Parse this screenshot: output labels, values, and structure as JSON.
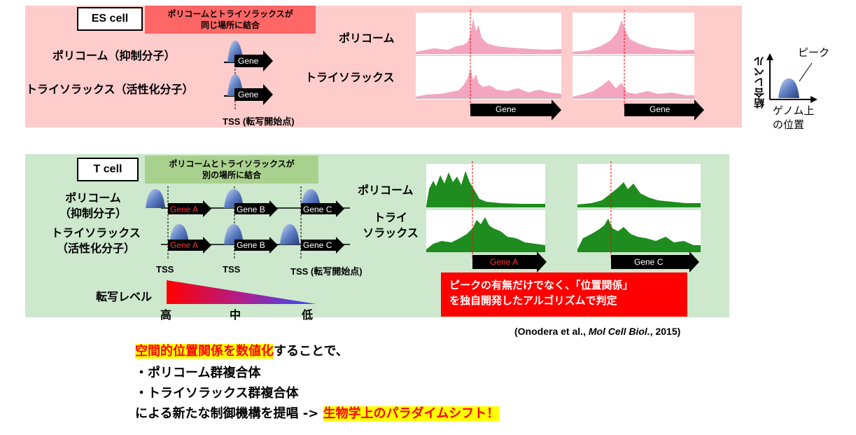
{
  "es": {
    "cell_label": "ES cell",
    "note_line1": "ポリコームとトライソラックスが",
    "note_line2": "同じ場所に結合",
    "polycomb_label": "ポリコーム（抑制分子）",
    "trithorax_label": "トライソラックス（活性化分子）",
    "gene_label": "Gene",
    "tss_label": "TSS (転写開始点)",
    "track_polycomb": "ポリコーム",
    "track_trithorax": "トライソラックス",
    "track_gene1": "Gene",
    "track_gene2": "Gene"
  },
  "legend": {
    "ylabel": "結合レベル",
    "xlabel_line1": "ゲノム上",
    "xlabel_line2": "の位置",
    "peak": "ピーク"
  },
  "t": {
    "cell_label": "T cell",
    "note_line1": "ポリコームとトライソラックスが",
    "note_line2": "別の場所に結合",
    "polycomb_line1": "ポリコーム",
    "polycomb_line2": "（抑制分子）",
    "trithorax_line1": "トライソラックス",
    "trithorax_line2": "（活性化分子）",
    "gene_a": "Gene A",
    "gene_b": "Gene B",
    "gene_c": "Gene C",
    "tss1": "TSS",
    "tss2": "TSS",
    "tss3": "TSS (転写開始点)",
    "level_label": "転写レベル",
    "level_high": "高",
    "level_mid": "中",
    "level_low": "低",
    "track_polycomb": "ポリコーム",
    "track_trithorax_line1": "トライ",
    "track_trithorax_line2": "ソラックス",
    "track_gene_a": "Gene A",
    "track_gene_c": "Gene C",
    "callout_line1": "ピークの有無だけでなく、「位置関係」",
    "callout_line2": "を独自開発したアルゴリズムで判定"
  },
  "citation": {
    "prefix": "(Onodera et al., ",
    "journal": "Mol Cell Biol.",
    "suffix": ", 2015)"
  },
  "bottom": {
    "line1_highlight": "空間的位置関係を数値化",
    "line1_rest": "することで、",
    "line2": "・ポリコーム群複合体",
    "line3": "・トライソラックス群複合体",
    "line4_text": "による新たな制御機構を提唱 -> ",
    "line4_highlight": "生物学上のパラダイムシフト！"
  },
  "colors": {
    "es_bg": "#ffcccc",
    "t_bg": "#cde8cd",
    "es_note": "#ff6666",
    "t_note": "#a9d18e",
    "peak_pink": "#f4a6c0",
    "peak_green": "#1e8c1e",
    "callout_red": "#ff0000",
    "highlight_yellow": "#ffff00"
  }
}
